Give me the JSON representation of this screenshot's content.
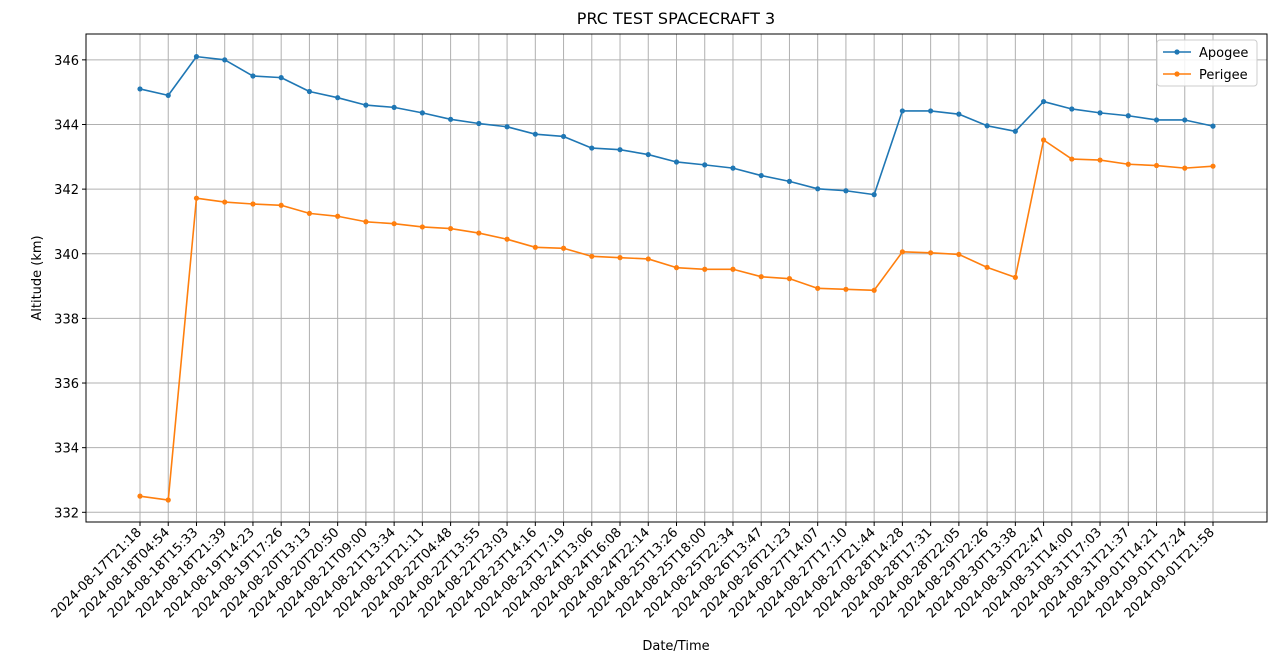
{
  "chart_data": {
    "type": "line",
    "title": "PRC TEST SPACECRAFT 3",
    "xlabel": "Date/Time",
    "ylabel": "Altitude (km)",
    "ylim": [
      331.7,
      346.8
    ],
    "yticks": [
      332,
      334,
      336,
      338,
      340,
      342,
      344,
      346
    ],
    "grid": true,
    "legend_position": "top-right",
    "categories": [
      "2024-08-17T21:18",
      "2024-08-18T04:54",
      "2024-08-18T15:33",
      "2024-08-18T21:39",
      "2024-08-19T14:23",
      "2024-08-19T17:26",
      "2024-08-20T13:13",
      "2024-08-20T20:50",
      "2024-08-21T09:00",
      "2024-08-21T13:34",
      "2024-08-21T21:11",
      "2024-08-22T04:48",
      "2024-08-22T13:55",
      "2024-08-22T23:03",
      "2024-08-23T14:16",
      "2024-08-23T17:19",
      "2024-08-24T13:06",
      "2024-08-24T16:08",
      "2024-08-24T22:14",
      "2024-08-25T13:26",
      "2024-08-25T18:00",
      "2024-08-25T22:34",
      "2024-08-26T13:47",
      "2024-08-26T21:23",
      "2024-08-27T14:07",
      "2024-08-27T17:10",
      "2024-08-27T21:44",
      "2024-08-28T14:28",
      "2024-08-28T17:31",
      "2024-08-28T22:05",
      "2024-08-29T22:26",
      "2024-08-30T13:38",
      "2024-08-30T22:47",
      "2024-08-31T14:00",
      "2024-08-31T17:03",
      "2024-08-31T21:37",
      "2024-09-01T14:21",
      "2024-09-01T17:24",
      "2024-09-01T21:58"
    ],
    "series": [
      {
        "name": "Apogee",
        "color": "#1f77b4",
        "values": [
          345.1,
          344.9,
          346.1,
          346.0,
          345.5,
          345.45,
          345.02,
          344.83,
          344.6,
          344.53,
          344.36,
          344.16,
          344.03,
          343.93,
          343.7,
          343.63,
          343.27,
          343.22,
          343.07,
          342.84,
          342.75,
          342.65,
          342.42,
          342.24,
          342.01,
          341.95,
          341.83,
          344.42,
          344.42,
          344.32,
          343.96,
          343.79,
          344.71,
          344.48,
          344.36,
          344.27,
          344.14,
          344.14,
          343.95
        ]
      },
      {
        "name": "Perigee",
        "color": "#ff7f0e",
        "values": [
          332.5,
          332.38,
          341.72,
          341.6,
          341.54,
          341.5,
          341.25,
          341.16,
          340.99,
          340.93,
          340.83,
          340.78,
          340.64,
          340.45,
          340.2,
          340.17,
          339.92,
          339.88,
          339.84,
          339.57,
          339.52,
          339.52,
          339.29,
          339.23,
          338.93,
          338.9,
          338.87,
          340.06,
          340.03,
          339.98,
          339.58,
          339.27,
          343.52,
          342.93,
          342.9,
          342.77,
          342.73,
          342.65,
          342.71
        ]
      }
    ]
  }
}
